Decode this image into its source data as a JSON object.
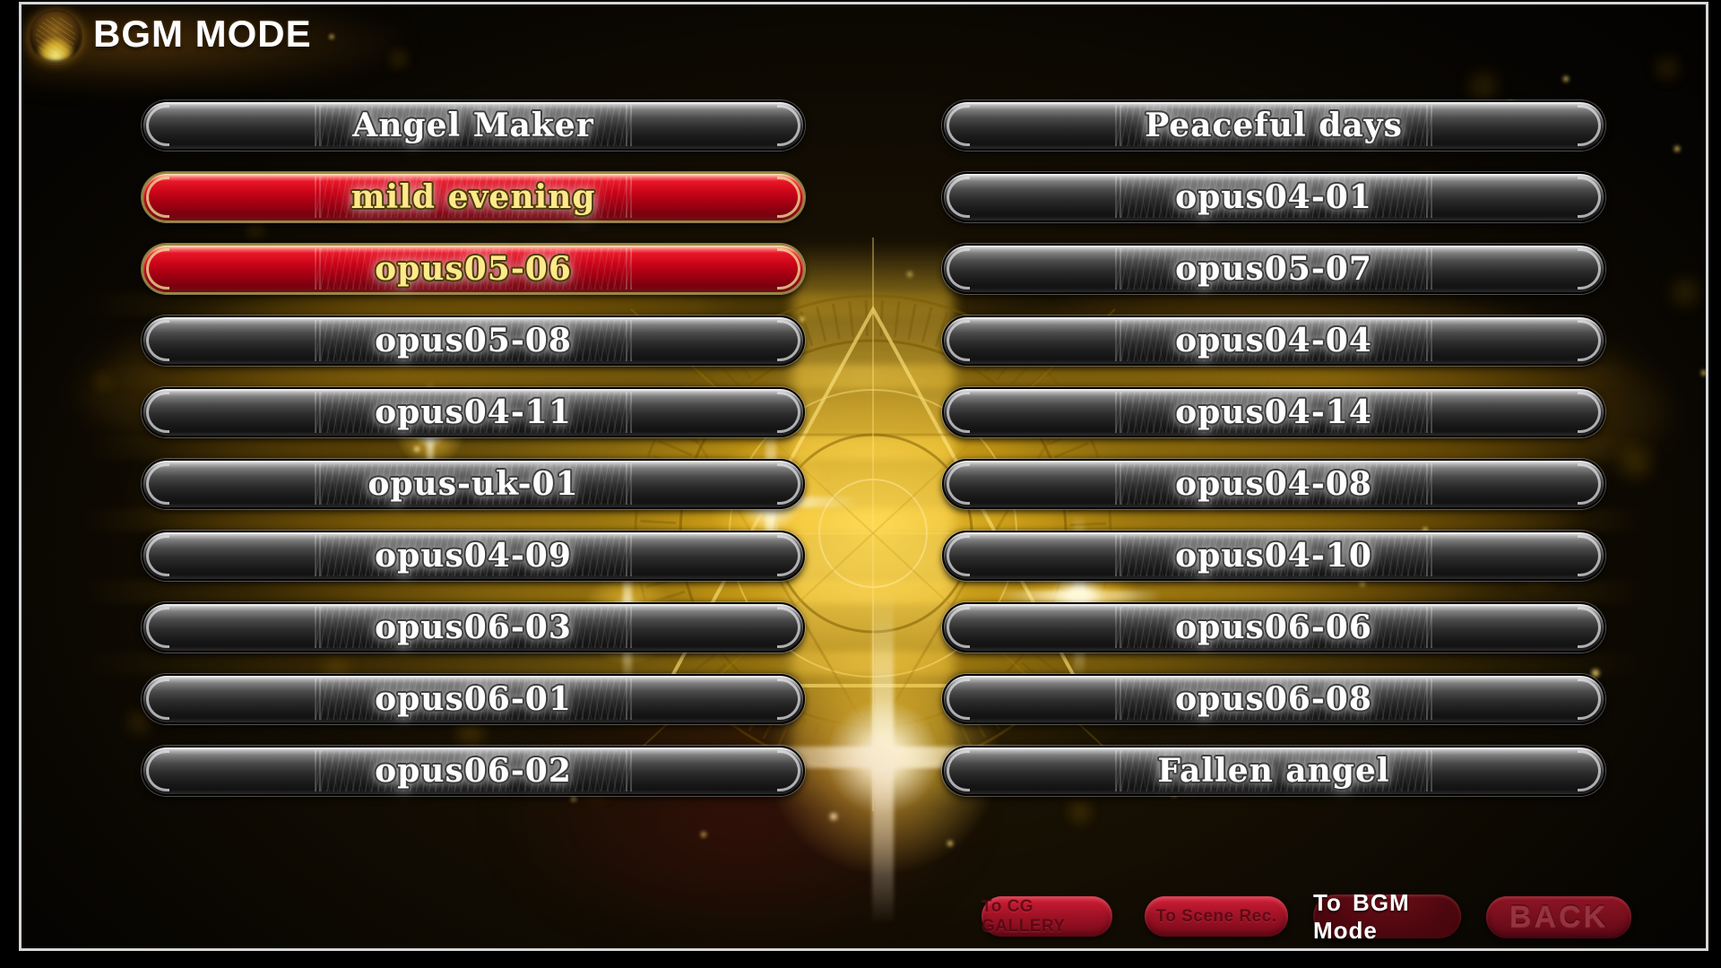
{
  "header": {
    "title": "BGM MODE",
    "icon": "gold-orb-icon"
  },
  "tracks": {
    "left": [
      {
        "label": "Angel Maker",
        "selected": false
      },
      {
        "label": "mild evening",
        "selected": true
      },
      {
        "label": "opus05-06",
        "selected": true
      },
      {
        "label": "opus05-08",
        "selected": false
      },
      {
        "label": "opus04-11",
        "selected": false
      },
      {
        "label": "opus-uk-01",
        "selected": false
      },
      {
        "label": "opus04-09",
        "selected": false
      },
      {
        "label": "opus06-03",
        "selected": false
      },
      {
        "label": "opus06-01",
        "selected": false
      },
      {
        "label": "opus06-02",
        "selected": false
      }
    ],
    "right": [
      {
        "label": "Peaceful days",
        "selected": false
      },
      {
        "label": "opus04-01",
        "selected": false
      },
      {
        "label": "opus05-07",
        "selected": false
      },
      {
        "label": "opus04-04",
        "selected": false
      },
      {
        "label": "opus04-14",
        "selected": false
      },
      {
        "label": "opus04-08",
        "selected": false
      },
      {
        "label": "opus04-10",
        "selected": false
      },
      {
        "label": "opus06-06",
        "selected": false
      },
      {
        "label": "opus06-08",
        "selected": false
      },
      {
        "label": "Fallen angel",
        "selected": false
      }
    ]
  },
  "footer": {
    "buttons": [
      {
        "label": "To CG GALLERY",
        "variant": "dimmed"
      },
      {
        "label": "To Scene Rec.",
        "variant": "dimmed"
      },
      {
        "label": "To BGM Mode",
        "variant": "highlight"
      },
      {
        "label": "BACK",
        "variant": "back"
      }
    ]
  },
  "colors": {
    "selected_red": "#d80016",
    "gold_accent": "#f2c218",
    "frame": "#d6d6d6",
    "metal_button_dark": "#1a1a1a",
    "footer_red": "#a01226",
    "footer_dark_maroon": "#4e070f",
    "selected_text_yellow": "#ffe98c"
  }
}
